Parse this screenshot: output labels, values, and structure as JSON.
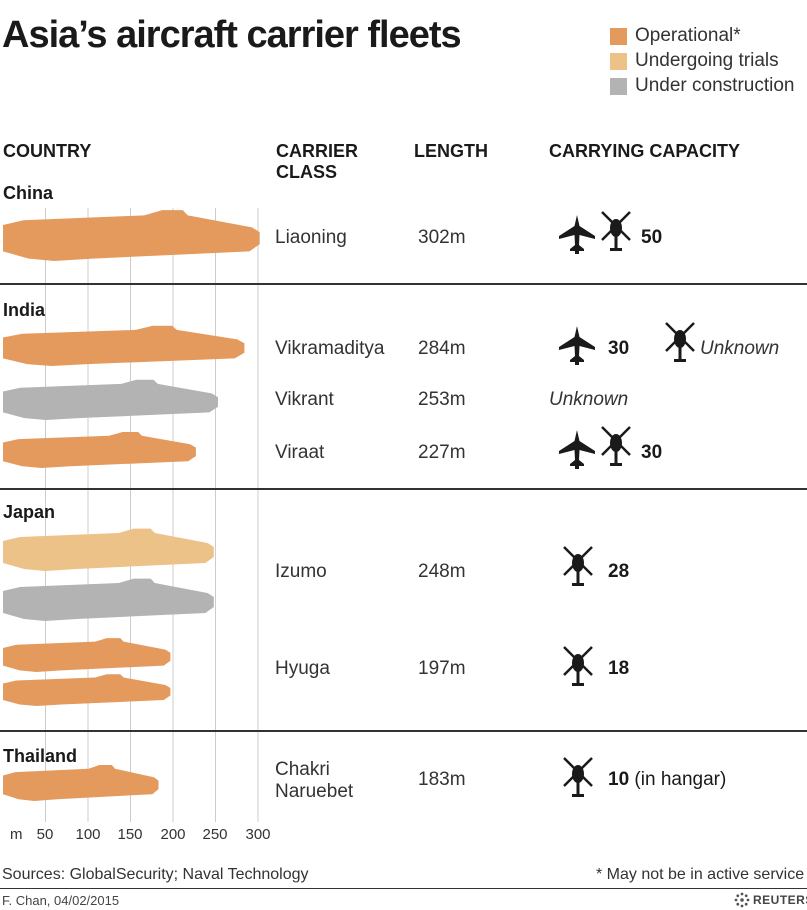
{
  "title": "Asia’s aircraft carrier fleets",
  "legend": [
    {
      "label": "Operational*",
      "color": "#e59a5d"
    },
    {
      "label": "Undergoing trials",
      "color": "#ecc288"
    },
    {
      "label": "Under construction",
      "color": "#b3b3b3"
    }
  ],
  "columns": {
    "country": "COUNTRY",
    "carrier_class_line1": "CARRIER",
    "carrier_class_line2": "CLASS",
    "length": "LENGTH",
    "capacity": "CARRYING CAPACITY"
  },
  "countries": [
    "China",
    "India",
    "Japan",
    "Thailand"
  ],
  "rows": [
    {
      "class_line1": "Liaoning",
      "class_line2": "",
      "length": "302m",
      "capacity": "50",
      "capacity_note": "",
      "unknown_text": ""
    },
    {
      "class_line1": "Vikramaditya",
      "class_line2": "",
      "length": "284m",
      "capacity": "30",
      "capacity_note": "",
      "unknown_text": "Unknown"
    },
    {
      "class_line1": "Vikrant",
      "class_line2": "",
      "length": "253m",
      "capacity": "",
      "capacity_note": "",
      "unknown_text": "Unknown"
    },
    {
      "class_line1": "Viraat",
      "class_line2": "",
      "length": "227m",
      "capacity": "30",
      "capacity_note": "",
      "unknown_text": ""
    },
    {
      "class_line1": "Izumo",
      "class_line2": "",
      "length": "248m",
      "capacity": "28",
      "capacity_note": "",
      "unknown_text": ""
    },
    {
      "class_line1": "Hyuga",
      "class_line2": "",
      "length": "197m",
      "capacity": "18",
      "capacity_note": "",
      "unknown_text": ""
    },
    {
      "class_line1": "Chakri",
      "class_line2": "Naruebet",
      "length": "183m",
      "capacity": "10",
      "capacity_note": "(in hangar)",
      "unknown_text": ""
    }
  ],
  "axis": {
    "unit": "m",
    "ticks": [
      "50",
      "100",
      "150",
      "200",
      "250",
      "300"
    ]
  },
  "footer": {
    "sources": "Sources: GlobalSecurity; Naval Technology",
    "note": "* May not be in active service",
    "credit": "F. Chan, 04/02/2015",
    "brand": "REUTERS"
  },
  "icons": [
    "fighter-jet-icon",
    "helicopter-icon"
  ],
  "chart_data": {
    "type": "bar",
    "xlabel": "m",
    "xlim": [
      0,
      300
    ],
    "xticks": [
      50,
      100,
      150,
      200,
      250,
      300
    ],
    "bars": [
      {
        "country": "China",
        "carrier": "Liaoning",
        "length_m": 302,
        "status": "Operational*",
        "color": "#e59a5d"
      },
      {
        "country": "India",
        "carrier": "Vikramaditya",
        "length_m": 284,
        "status": "Operational*",
        "color": "#e59a5d"
      },
      {
        "country": "India",
        "carrier": "Vikrant",
        "length_m": 253,
        "status": "Under construction",
        "color": "#b3b3b3"
      },
      {
        "country": "India",
        "carrier": "Viraat",
        "length_m": 227,
        "status": "Operational*",
        "color": "#e59a5d"
      },
      {
        "country": "Japan",
        "carrier": "Izumo",
        "length_m": 248,
        "status": "Undergoing trials",
        "color": "#ecc288"
      },
      {
        "country": "Japan",
        "carrier": "Izumo",
        "length_m": 248,
        "status": "Under construction",
        "color": "#b3b3b3"
      },
      {
        "country": "Japan",
        "carrier": "Hyuga",
        "length_m": 197,
        "status": "Operational*",
        "color": "#e59a5d"
      },
      {
        "country": "Japan",
        "carrier": "Hyuga",
        "length_m": 197,
        "status": "Operational*",
        "color": "#e59a5d"
      },
      {
        "country": "Thailand",
        "carrier": "Chakri Naruebet",
        "length_m": 183,
        "status": "Operational*",
        "color": "#e59a5d"
      }
    ]
  }
}
